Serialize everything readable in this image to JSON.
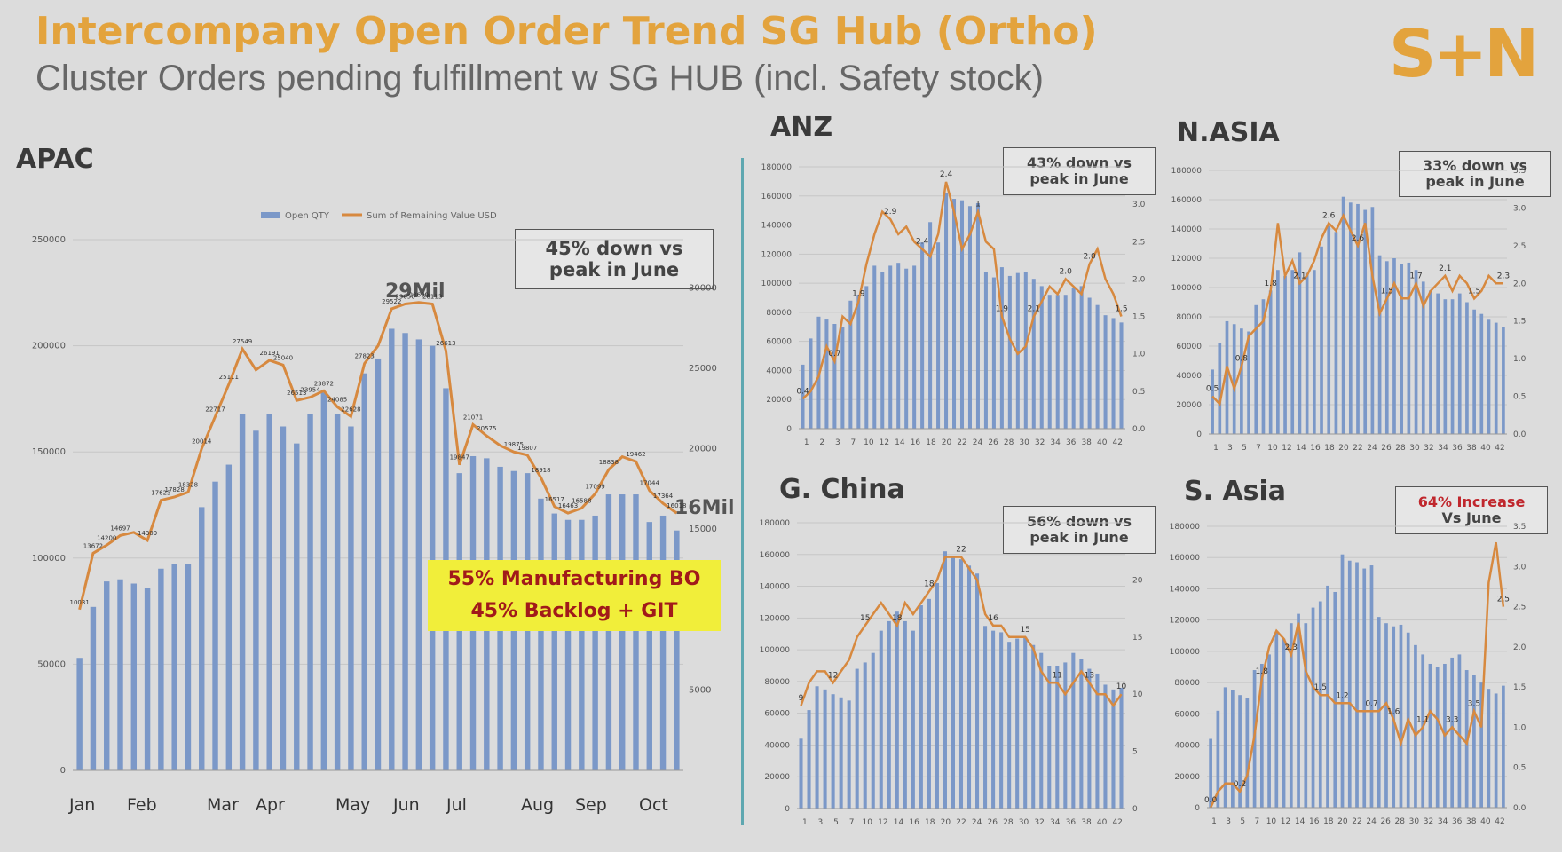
{
  "header": {
    "title": "Intercompany Open Order Trend SG Hub (Ortho)",
    "subtitle": "Cluster Orders pending fulfillment w SG HUB (incl. Safety stock)",
    "logo": "S+N"
  },
  "annotations": {
    "peak": "29Mil",
    "latest": "16Mil",
    "bo_line1": "55% Manufacturing BO",
    "bo_line2": "45% Backlog + GIT"
  },
  "colors": {
    "bar": "#7b98c8",
    "line": "#d7893f",
    "title": "#e3a33d",
    "callout_red": "#c0272d"
  },
  "chart_data": [
    {
      "id": "apac",
      "region": "APAC",
      "type": "bar",
      "legend": [
        "Open QTY",
        "Sum of Remaining Value USD"
      ],
      "callout": [
        "45% down vs",
        "peak in June"
      ],
      "months": [
        "Jan",
        "Feb",
        "Mar",
        "Apr",
        "May",
        "Jun",
        "Jul",
        "Aug",
        "Sep",
        "Oct"
      ],
      "ylim": [
        0,
        250000
      ],
      "yticks": [
        "0",
        "50000",
        "100000",
        "150000",
        "200000",
        "250000"
      ],
      "y2lim": [
        0,
        33000
      ],
      "y2ticks": [
        "5000",
        "10000",
        "15000",
        "20000",
        "25000",
        "30000"
      ],
      "values": [
        53000,
        77000,
        89000,
        90000,
        88000,
        86000,
        95000,
        97000,
        97000,
        124000,
        136000,
        144000,
        168000,
        160000,
        168000,
        162000,
        154000,
        168000,
        178000,
        168000,
        162000,
        187000,
        194000,
        208000,
        206000,
        203000,
        200000,
        180000,
        140000,
        148000,
        147000,
        143000,
        141000,
        140000,
        128000,
        121000,
        118000,
        118000,
        120000,
        130000,
        130000,
        130000,
        117000,
        120000,
        113000
      ],
      "line": [
        10000,
        13500,
        14000,
        14600,
        14800,
        14300,
        16800,
        17000,
        17300,
        20000,
        22000,
        24000,
        26200,
        24900,
        25500,
        25200,
        23000,
        23200,
        23600,
        22600,
        22000,
        25300,
        26400,
        28700,
        29000,
        29100,
        29000,
        26100,
        19000,
        21500,
        20800,
        20200,
        19800,
        19600,
        18200,
        16400,
        16000,
        16300,
        17200,
        18700,
        19500,
        19200,
        17400,
        16600,
        16000
      ],
      "line_labels": [
        "10031",
        "13672",
        "14200",
        "14697",
        "14309",
        "17623",
        "17828",
        "18328",
        "20014",
        "22717",
        "25111",
        "27549",
        "26191",
        "25040",
        "26513",
        "23954",
        "23872",
        "24085",
        "22628",
        "27823",
        "29522",
        "29056",
        "28699",
        "28113",
        "26613",
        "19847",
        "21071",
        "20575",
        "19875",
        "19807",
        "18918",
        "16517",
        "16463",
        "16588",
        "17099",
        "18838",
        "19462",
        "17044",
        "17364",
        "16018"
      ]
    },
    {
      "id": "anz",
      "region": "ANZ",
      "type": "bar",
      "callout": [
        "43% down vs",
        "peak in June"
      ],
      "ylim": [
        0,
        180000
      ],
      "yticks": [
        "0",
        "20000",
        "40000",
        "60000",
        "80000",
        "100000",
        "120000",
        "140000",
        "160000",
        "180000"
      ],
      "y2lim": [
        0,
        3.5
      ],
      "y2ticks": [
        "0.0",
        "0.5",
        "1.0",
        "1.5",
        "2.0",
        "2.5",
        "3.0"
      ],
      "xticks": [
        "1",
        "2",
        "3",
        "7",
        "10",
        "12",
        "14",
        "16",
        "18",
        "20",
        "22",
        "24",
        "26",
        "28",
        "30",
        "32",
        "34",
        "36",
        "38",
        "40",
        "42"
      ],
      "values": [
        44000,
        62000,
        77000,
        75000,
        72000,
        70000,
        88000,
        92000,
        98000,
        112000,
        108000,
        112000,
        114000,
        110000,
        112000,
        128000,
        142000,
        128000,
        162000,
        158000,
        157000,
        153000,
        155000,
        108000,
        104000,
        111000,
        105000,
        107000,
        108000,
        103000,
        98000,
        92000,
        92000,
        92000,
        97000,
        98000,
        90000,
        85000,
        78000,
        76000,
        73000
      ],
      "line": [
        0.4,
        0.5,
        0.7,
        1.1,
        0.9,
        1.5,
        1.4,
        1.7,
        2.2,
        2.6,
        2.9,
        2.8,
        2.6,
        2.7,
        2.5,
        2.4,
        2.3,
        2.6,
        3.3,
        2.9,
        2.4,
        2.6,
        2.9,
        2.5,
        2.4,
        1.5,
        1.2,
        1.0,
        1.1,
        1.5,
        1.7,
        1.9,
        1.8,
        2.0,
        1.9,
        1.8,
        2.2,
        2.4,
        2.0,
        1.8,
        1.5
      ],
      "line_labels": [
        "0.4",
        "0.7",
        "1.9",
        "2.9",
        "2.4",
        "2.4",
        "1",
        "1.9",
        "2.1",
        "2.0",
        "2.0",
        "1.5"
      ]
    },
    {
      "id": "nasia",
      "region": "N.ASIA",
      "type": "bar",
      "callout": [
        "33% down vs",
        "peak in June"
      ],
      "ylim": [
        0,
        180000
      ],
      "yticks": [
        "0",
        "20000",
        "40000",
        "60000",
        "80000",
        "100000",
        "120000",
        "140000",
        "160000",
        "180000"
      ],
      "y2lim": [
        0,
        3.5
      ],
      "y2ticks": [
        "0.0",
        "0.5",
        "1.0",
        "1.5",
        "2.0",
        "2.5",
        "3.0",
        "3.5"
      ],
      "xticks": [
        "1",
        "3",
        "5",
        "7",
        "10",
        "12",
        "14",
        "16",
        "18",
        "20",
        "22",
        "24",
        "26",
        "28",
        "30",
        "32",
        "34",
        "36",
        "38",
        "40",
        "42"
      ],
      "values": [
        44000,
        62000,
        77000,
        75000,
        72000,
        70000,
        88000,
        92000,
        98000,
        112000,
        108000,
        112000,
        124000,
        110000,
        112000,
        128000,
        142000,
        138000,
        162000,
        158000,
        157000,
        153000,
        155000,
        122000,
        118000,
        120000,
        116000,
        117000,
        112000,
        104000,
        98000,
        96000,
        92000,
        92000,
        96000,
        90000,
        85000,
        82000,
        78000,
        76000,
        73000
      ],
      "line": [
        0.5,
        0.4,
        0.9,
        0.6,
        0.9,
        1.3,
        1.4,
        1.5,
        1.9,
        2.8,
        2.1,
        2.3,
        2.0,
        2.1,
        2.3,
        2.6,
        2.8,
        2.7,
        2.9,
        2.7,
        2.5,
        2.8,
        2.1,
        1.6,
        1.8,
        2.0,
        1.8,
        1.8,
        2.0,
        1.7,
        1.9,
        2.0,
        2.1,
        1.9,
        2.1,
        2.0,
        1.8,
        1.9,
        2.1,
        2.0,
        2.0
      ],
      "line_labels": [
        "0.5",
        "0.8",
        "1.8",
        "2.1",
        "2.6",
        "2.6",
        "1.5",
        "1.7",
        "2.1",
        "1.5",
        "2.3"
      ]
    },
    {
      "id": "gchina",
      "region": "G. China",
      "type": "bar",
      "callout": [
        "56% down vs",
        "peak in June"
      ],
      "ylim": [
        0,
        180000
      ],
      "yticks": [
        "0",
        "20000",
        "40000",
        "60000",
        "80000",
        "100000",
        "120000",
        "140000",
        "160000",
        "180000"
      ],
      "y2lim": [
        0,
        25
      ],
      "y2ticks": [
        "0",
        "5",
        "10",
        "15",
        "20"
      ],
      "xticks": [
        "1",
        "3",
        "5",
        "7",
        "10",
        "12",
        "14",
        "16",
        "18",
        "20",
        "22",
        "24",
        "26",
        "28",
        "30",
        "32",
        "34",
        "36",
        "38",
        "40",
        "42"
      ],
      "values": [
        44000,
        62000,
        77000,
        75000,
        72000,
        70000,
        68000,
        88000,
        92000,
        98000,
        112000,
        118000,
        124000,
        118000,
        112000,
        128000,
        132000,
        142000,
        162000,
        158000,
        157000,
        153000,
        148000,
        115000,
        112000,
        111000,
        105000,
        107000,
        108000,
        103000,
        98000,
        90000,
        90000,
        92000,
        98000,
        94000,
        88000,
        85000,
        78000,
        75000,
        76000
      ],
      "line": [
        9,
        11,
        12,
        12,
        11,
        12,
        13,
        15,
        16,
        17,
        18,
        17,
        16,
        18,
        17,
        18,
        19,
        20,
        22,
        22,
        22,
        21,
        20,
        17,
        16,
        16,
        15,
        15,
        15,
        14,
        12,
        11,
        11,
        10,
        11,
        12,
        11,
        10,
        10,
        9,
        10
      ],
      "line_labels": [
        "9",
        "12",
        "15",
        "18",
        "18",
        "22",
        "16",
        "15",
        "11",
        "13",
        "10"
      ]
    },
    {
      "id": "sasia",
      "region": "S. Asia",
      "type": "bar",
      "callout": [
        "64% Increase",
        "Vs June"
      ],
      "ylim": [
        0,
        180000
      ],
      "yticks": [
        "0",
        "20000",
        "40000",
        "60000",
        "80000",
        "100000",
        "120000",
        "140000",
        "160000",
        "180000"
      ],
      "y2lim": [
        0,
        3.5
      ],
      "y2ticks": [
        "0.0",
        "0.5",
        "1.0",
        "1.5",
        "2.0",
        "2.5",
        "3.0",
        "3.5"
      ],
      "xticks": [
        "1",
        "3",
        "5",
        "7",
        "10",
        "12",
        "14",
        "16",
        "18",
        "20",
        "22",
        "24",
        "26",
        "28",
        "30",
        "32",
        "34",
        "36",
        "38",
        "40",
        "42"
      ],
      "values": [
        44000,
        62000,
        77000,
        75000,
        72000,
        70000,
        88000,
        92000,
        98000,
        112000,
        108000,
        118000,
        124000,
        118000,
        128000,
        132000,
        142000,
        138000,
        162000,
        158000,
        157000,
        153000,
        155000,
        122000,
        118000,
        116000,
        117000,
        112000,
        104000,
        98000,
        92000,
        90000,
        92000,
        96000,
        98000,
        88000,
        85000,
        80000,
        76000,
        73000,
        78000
      ],
      "line": [
        0.0,
        0.2,
        0.3,
        0.3,
        0.2,
        0.4,
        0.9,
        1.6,
        2.0,
        2.2,
        2.1,
        1.9,
        2.3,
        1.7,
        1.5,
        1.4,
        1.4,
        1.3,
        1.3,
        1.3,
        1.2,
        1.2,
        1.2,
        1.2,
        1.3,
        1.1,
        0.8,
        1.1,
        0.9,
        1.0,
        1.2,
        1.1,
        0.9,
        1.0,
        0.9,
        0.8,
        1.2,
        1.0,
        2.8,
        3.3,
        2.5
      ],
      "line_labels": [
        "0.0",
        "0.2",
        "1.8",
        "2.3",
        "1.5",
        "1.2",
        "0.7",
        "1.6",
        "1.1",
        "3.3",
        "3.5",
        "2.5"
      ]
    }
  ]
}
